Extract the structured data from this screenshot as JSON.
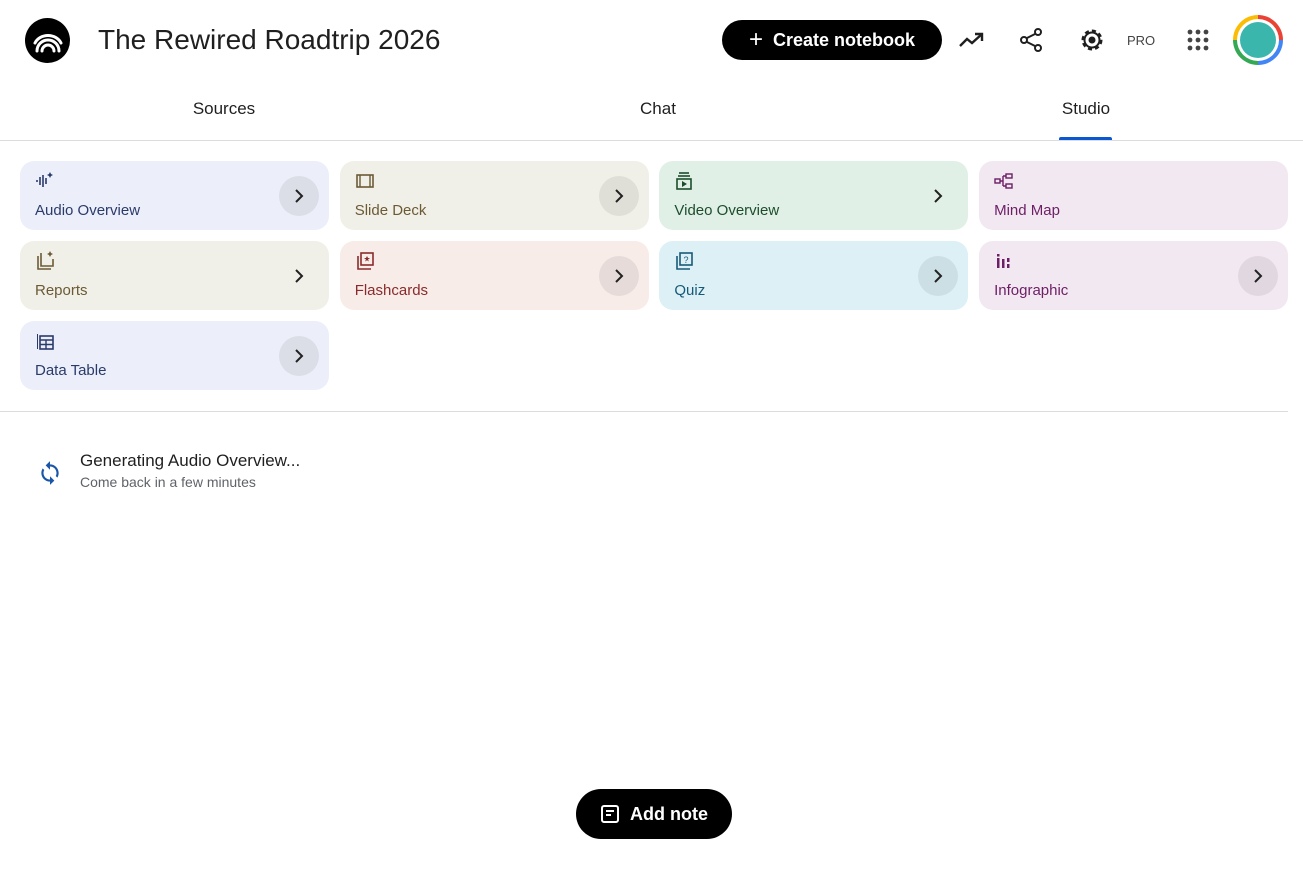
{
  "header": {
    "title": "The Rewired Roadtrip 2026",
    "create_label": "Create notebook",
    "pro_label": "PRO",
    "icons": [
      "notebooklm-logo",
      "analytics-icon",
      "share-icon",
      "settings-icon",
      "apps-grid-icon",
      "avatar"
    ]
  },
  "tabs": [
    {
      "label": "Sources"
    },
    {
      "label": "Chat"
    },
    {
      "label": "Studio",
      "active": true
    }
  ],
  "studio": {
    "cards": [
      {
        "label": "Audio Overview",
        "icon": "audio-waveform-icon",
        "bg": "#eceff9",
        "fg": "#2a3a6b"
      },
      {
        "label": "Slide Deck",
        "icon": "slides-icon",
        "bg": "#f1f0e8",
        "fg": "#6b5a34"
      },
      {
        "label": "Video Overview",
        "icon": "video-icon",
        "bg": "#e1f0e6",
        "fg": "#1d4d2c"
      },
      {
        "label": "Mind Map",
        "icon": "mind-map-icon",
        "bg": "#f2e8f1",
        "fg": "#6d1f66"
      },
      {
        "label": "Reports",
        "icon": "reports-icon",
        "bg": "#f1f0e8",
        "fg": "#6b5a34"
      },
      {
        "label": "Flashcards",
        "icon": "flashcards-icon",
        "bg": "#f8ece9",
        "fg": "#8a2b2b"
      },
      {
        "label": "Quiz",
        "icon": "quiz-icon",
        "bg": "#dcf0f6",
        "fg": "#175a78"
      },
      {
        "label": "Infographic",
        "icon": "infographic-icon",
        "bg": "#f2e8f1",
        "fg": "#6d1f66"
      },
      {
        "label": "Data Table",
        "icon": "table-icon",
        "bg": "#eceff9",
        "fg": "#2a3a6b"
      }
    ]
  },
  "status": {
    "title": "Generating Audio Overview...",
    "subtitle": "Come back in a few minutes",
    "icon": "sync-icon",
    "color": "#1a56a8"
  },
  "add_note_label": "Add note"
}
